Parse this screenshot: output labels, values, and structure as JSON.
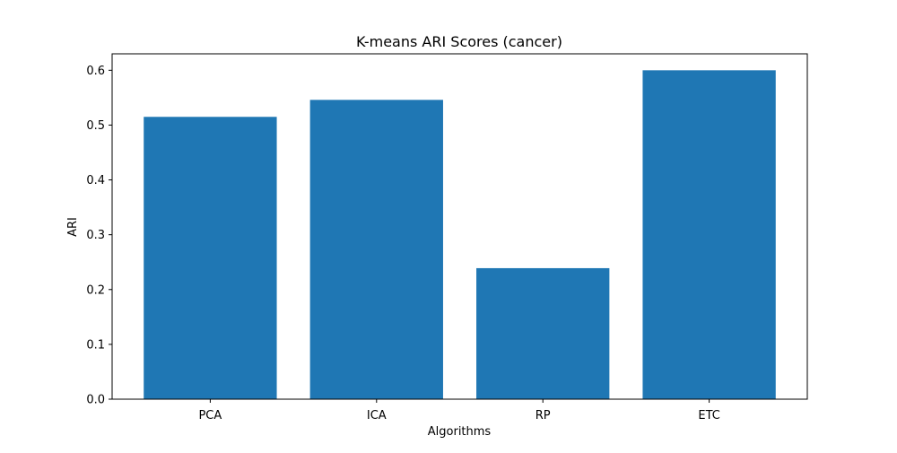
{
  "chart_data": {
    "type": "bar",
    "title": "K-means ARI Scores (cancer)",
    "xlabel": "Algorithms",
    "ylabel": "ARI",
    "categories": [
      "PCA",
      "ICA",
      "RP",
      "ETC"
    ],
    "values": [
      0.515,
      0.546,
      0.239,
      0.6
    ],
    "ylim": [
      0,
      0.63
    ],
    "yticks": [
      0.0,
      0.1,
      0.2,
      0.3,
      0.4,
      0.5,
      0.6
    ],
    "ytick_labels": [
      "0.0",
      "0.1",
      "0.2",
      "0.3",
      "0.4",
      "0.5",
      "0.6"
    ],
    "bar_color": "#1f77b4",
    "grid": false,
    "legend": "none"
  }
}
